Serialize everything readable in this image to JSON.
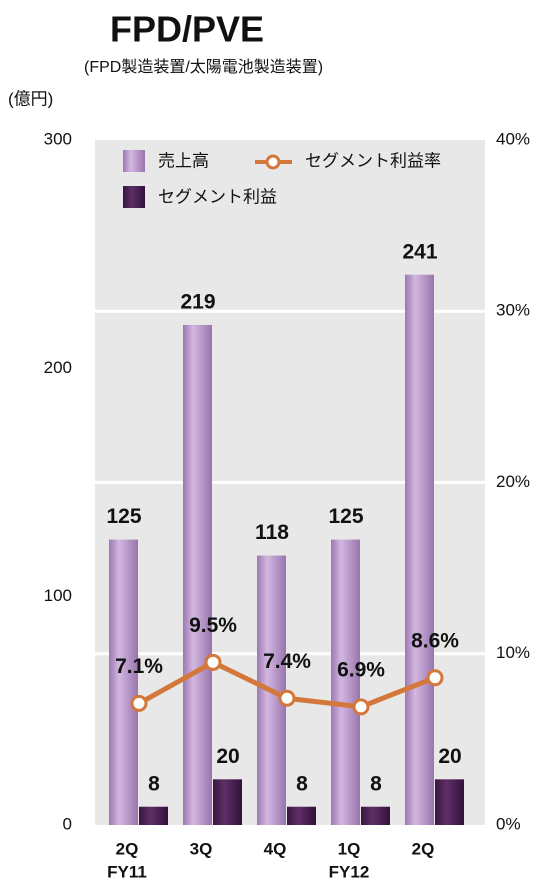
{
  "chart_data": {
    "type": "bar_line",
    "title": "FPD/PVE",
    "subtitle": "(FPD製造装置/太陽電池製造装置)",
    "y_label": "(億円)",
    "categories": [
      "2Q",
      "3Q",
      "4Q",
      "1Q",
      "2Q"
    ],
    "fiscal_years": [
      "FY11",
      null,
      null,
      "FY12",
      null
    ],
    "series": [
      {
        "name": "売上高",
        "color": "#b48fc7",
        "values": [
          125,
          219,
          118,
          125,
          241
        ]
      },
      {
        "name": "セグメント利益",
        "color": "#4a1e4f",
        "values": [
          8,
          20,
          8,
          8,
          20
        ]
      },
      {
        "name": "セグメント利益率",
        "color": "#d4773a",
        "axis": "y2",
        "values": [
          7.1,
          9.5,
          7.4,
          6.9,
          8.6
        ],
        "value_labels": [
          "7.1%",
          "9.5%",
          "7.4%",
          "6.9%",
          "8.6%"
        ]
      }
    ],
    "ylim": [
      0,
      300
    ],
    "yticks": [
      0,
      100,
      200,
      300
    ],
    "y2lim": [
      0,
      40
    ],
    "y2ticks": [
      {
        "value": 0,
        "label": "0%"
      },
      {
        "value": 10,
        "label": "10%"
      },
      {
        "value": 20,
        "label": "20%"
      },
      {
        "value": 30,
        "label": "30%"
      },
      {
        "value": 40,
        "label": "40%"
      }
    ],
    "grid": true
  }
}
